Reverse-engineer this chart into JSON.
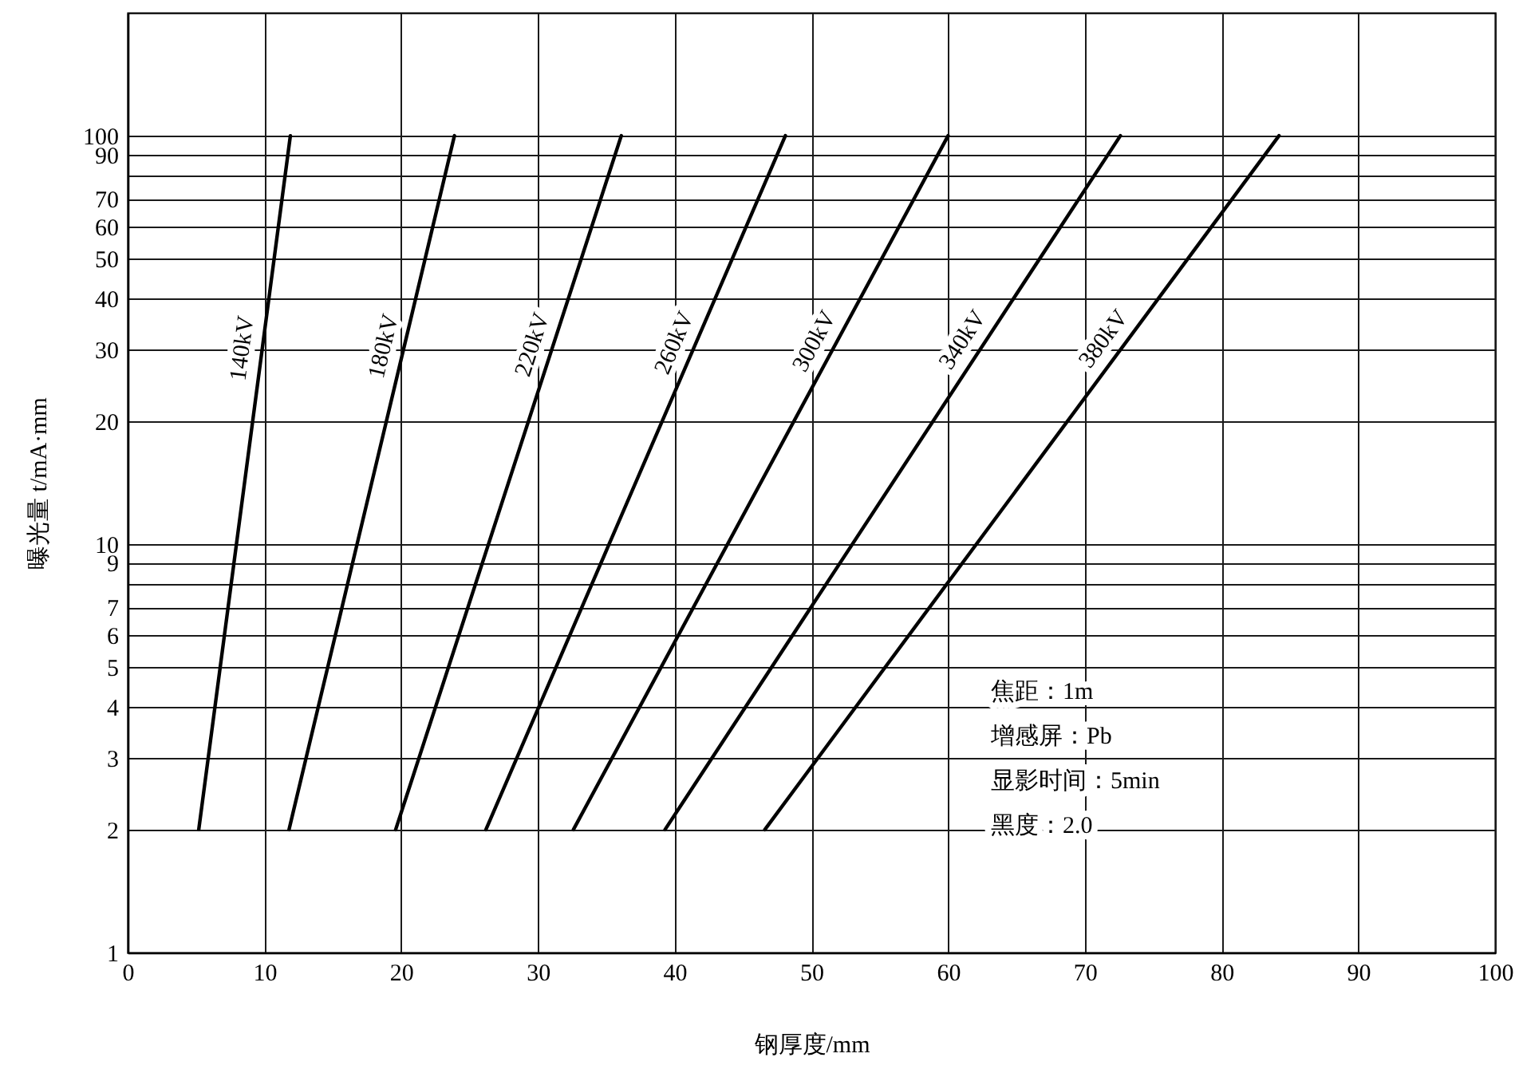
{
  "chart_data": {
    "type": "line",
    "xlabel": "钢厚度/mm",
    "ylabel": "曝光量 t/mA·mm",
    "log": "y",
    "xlim": [
      0,
      100
    ],
    "ylim": [
      1,
      200
    ],
    "xticks": [
      0,
      10,
      20,
      30,
      40,
      50,
      60,
      70,
      80,
      90,
      100
    ],
    "yticks": [
      1,
      2,
      3,
      4,
      5,
      6,
      7,
      {
        "value": 8,
        "label": null
      },
      9,
      10,
      20,
      30,
      40,
      50,
      60,
      70,
      {
        "value": 80,
        "label": null
      },
      90,
      100
    ],
    "grid": true,
    "marker": "none",
    "line_style": "solid",
    "series": [
      {
        "name": "140kV",
        "color": "#000000",
        "x": [
          5.2,
          11.9
        ],
        "values": [
          2,
          100
        ]
      },
      {
        "name": "180kV",
        "color": "#000000",
        "x": [
          11.8,
          23.9
        ],
        "values": [
          2,
          100
        ]
      },
      {
        "name": "220kV",
        "color": "#000000",
        "x": [
          19.6,
          36.1
        ],
        "values": [
          2,
          100
        ]
      },
      {
        "name": "260kV",
        "color": "#000000",
        "x": [
          26.2,
          48.1
        ],
        "values": [
          2,
          100
        ]
      },
      {
        "name": "300kV",
        "color": "#000000",
        "x": [
          32.6,
          60.0
        ],
        "values": [
          2,
          100
        ]
      },
      {
        "name": "340kV",
        "color": "#000000",
        "x": [
          39.3,
          72.6
        ],
        "values": [
          2,
          100
        ]
      },
      {
        "name": "380kV",
        "color": "#000000",
        "x": [
          46.6,
          84.2
        ],
        "values": [
          2,
          100
        ]
      }
    ],
    "annotations": [
      "焦距：1m",
      "增感屏：Pb",
      "显影时间：5min",
      "黑度：2.0"
    ]
  }
}
